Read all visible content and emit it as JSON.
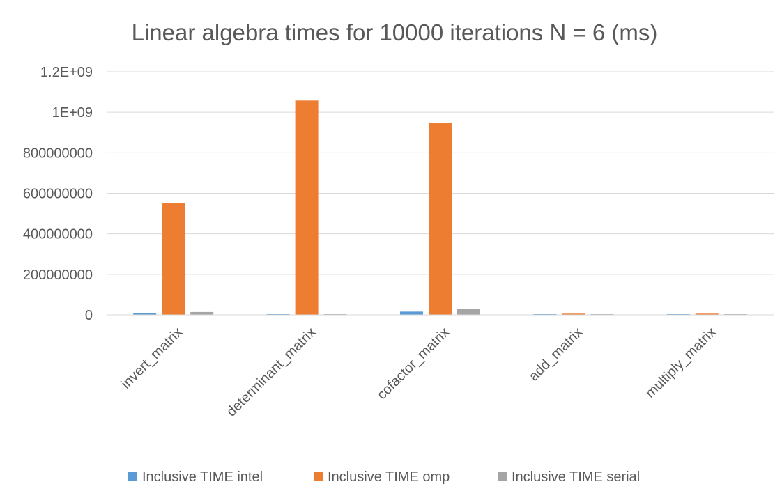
{
  "chart_data": {
    "type": "bar",
    "title": "Linear algebra times for 10000 iterations N = 6 (ms)",
    "xlabel": "",
    "ylabel": "",
    "categories": [
      "invert_matrix",
      "determinant_matrix",
      "cofactor_matrix",
      "add_matrix",
      "multiply_matrix"
    ],
    "series": [
      {
        "name": "Inclusive TIME intel",
        "color": "#5b9bd5",
        "values": [
          9000000,
          1500000,
          16000000,
          500000,
          500000
        ]
      },
      {
        "name": "Inclusive TIME omp",
        "color": "#ed7d31",
        "values": [
          553000000,
          1058000000,
          948000000,
          6000000,
          6000000
        ]
      },
      {
        "name": "Inclusive TIME serial",
        "color": "#a5a5a5",
        "values": [
          14000000,
          3000000,
          28000000,
          1500000,
          1500000
        ]
      }
    ],
    "ylim": [
      0,
      1200000000
    ],
    "yticks": [
      0,
      200000000,
      400000000,
      600000000,
      800000000,
      1000000000,
      1200000000
    ],
    "ytick_labels": [
      "0",
      "200000000",
      "400000000",
      "600000000",
      "800000000",
      "1E+09",
      "1.2E+09"
    ],
    "grid": true,
    "legend_position": "bottom"
  }
}
